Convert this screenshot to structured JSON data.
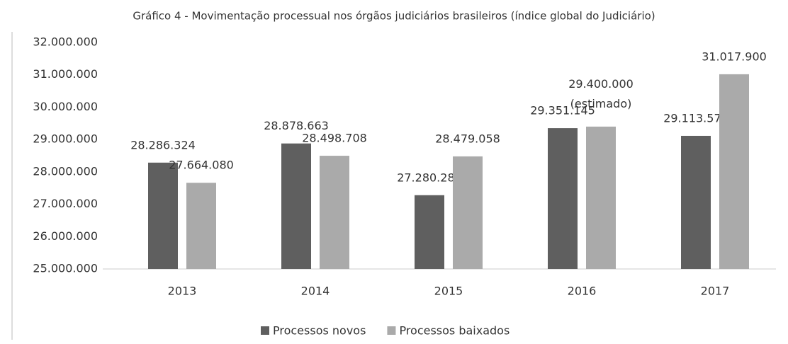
{
  "chart_data": {
    "type": "bar",
    "title": "Gráfico 4 - Movimentação processual nos órgãos judiciários brasileiros (índice global do Judiciário)",
    "categories": [
      "2013",
      "2014",
      "2015",
      "2016",
      "2017"
    ],
    "series": [
      {
        "name": "Processos novos",
        "color": "#5f5f5f",
        "values": [
          28286324,
          28878663,
          27280287,
          29351145,
          29113579
        ],
        "value_labels": [
          "28.286.324",
          "28.878.663",
          "27.280.287",
          "29.351.145",
          "29.113.579"
        ]
      },
      {
        "name": "Processos baixados",
        "color": "#aaaaaa",
        "values": [
          27664080,
          28498708,
          28479058,
          29400000,
          31017900
        ],
        "value_labels": [
          "27.664.080",
          "28.498.708",
          "28.479.058",
          "29.400.000 (estimado)",
          "31.017.900"
        ]
      }
    ],
    "ylim": [
      25000000,
      32000000
    ],
    "yticks": [
      {
        "value": 25000000,
        "label": "25.000.000"
      },
      {
        "value": 26000000,
        "label": "26.000.000"
      },
      {
        "value": 27000000,
        "label": "27.000.000"
      },
      {
        "value": 28000000,
        "label": "28.000.000"
      },
      {
        "value": 29000000,
        "label": "29.000.000"
      },
      {
        "value": 30000000,
        "label": "30.000.000"
      },
      {
        "value": 31000000,
        "label": "31.000.000"
      },
      {
        "value": 32000000,
        "label": "32.000.000"
      }
    ],
    "grid": false,
    "legend": "bottom"
  }
}
